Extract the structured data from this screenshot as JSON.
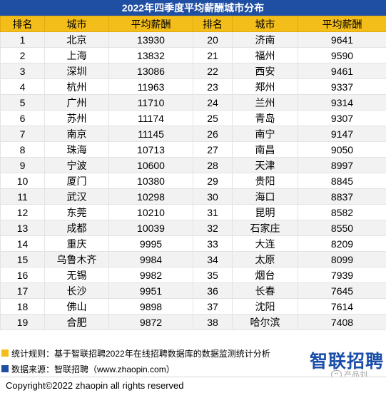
{
  "title": "2022年四季度平均薪酬城市分布",
  "headers": [
    "排名",
    "城市",
    "平均薪酬",
    "排名",
    "城市",
    "平均薪酬"
  ],
  "rows": [
    [
      "1",
      "北京",
      "13930",
      "20",
      "济南",
      "9641"
    ],
    [
      "2",
      "上海",
      "13832",
      "21",
      "福州",
      "9590"
    ],
    [
      "3",
      "深圳",
      "13086",
      "22",
      "西安",
      "9461"
    ],
    [
      "4",
      "杭州",
      "11963",
      "23",
      "郑州",
      "9337"
    ],
    [
      "5",
      "广州",
      "11710",
      "24",
      "兰州",
      "9314"
    ],
    [
      "6",
      "苏州",
      "11174",
      "25",
      "青岛",
      "9307"
    ],
    [
      "7",
      "南京",
      "11145",
      "26",
      "南宁",
      "9147"
    ],
    [
      "8",
      "珠海",
      "10713",
      "27",
      "南昌",
      "9050"
    ],
    [
      "9",
      "宁波",
      "10600",
      "28",
      "天津",
      "8997"
    ],
    [
      "10",
      "厦门",
      "10380",
      "29",
      "贵阳",
      "8845"
    ],
    [
      "11",
      "武汉",
      "10298",
      "30",
      "海口",
      "8837"
    ],
    [
      "12",
      "东莞",
      "10210",
      "31",
      "昆明",
      "8582"
    ],
    [
      "13",
      "成都",
      "10039",
      "32",
      "石家庄",
      "8550"
    ],
    [
      "14",
      "重庆",
      "9995",
      "33",
      "大连",
      "8209"
    ],
    [
      "15",
      "乌鲁木齐",
      "9984",
      "34",
      "太原",
      "8099"
    ],
    [
      "16",
      "无锡",
      "9982",
      "35",
      "烟台",
      "7939"
    ],
    [
      "17",
      "长沙",
      "9951",
      "36",
      "长春",
      "7645"
    ],
    [
      "18",
      "佛山",
      "9898",
      "37",
      "沈阳",
      "7614"
    ],
    [
      "19",
      "合肥",
      "9872",
      "38",
      "哈尔滨",
      "7408"
    ]
  ],
  "notes": {
    "rule": "统计规则：基于智联招聘2022年在线招聘数据库的数据监测统计分析",
    "source": "数据来源：智联招聘（www.zhaopin.com）"
  },
  "brand": "智联招聘",
  "watermark": "产品刘",
  "copyright": "Copyright©2022 zhaopin all rights reserved",
  "colors": {
    "title_bg": "#1f4fa3",
    "header_bg": "#f4be1a",
    "row_alt_bg": "#f2f2f2",
    "note_rule_marker": "#f4be1a",
    "note_source_marker": "#1f4fa3",
    "brand": "#1a4ea8"
  }
}
